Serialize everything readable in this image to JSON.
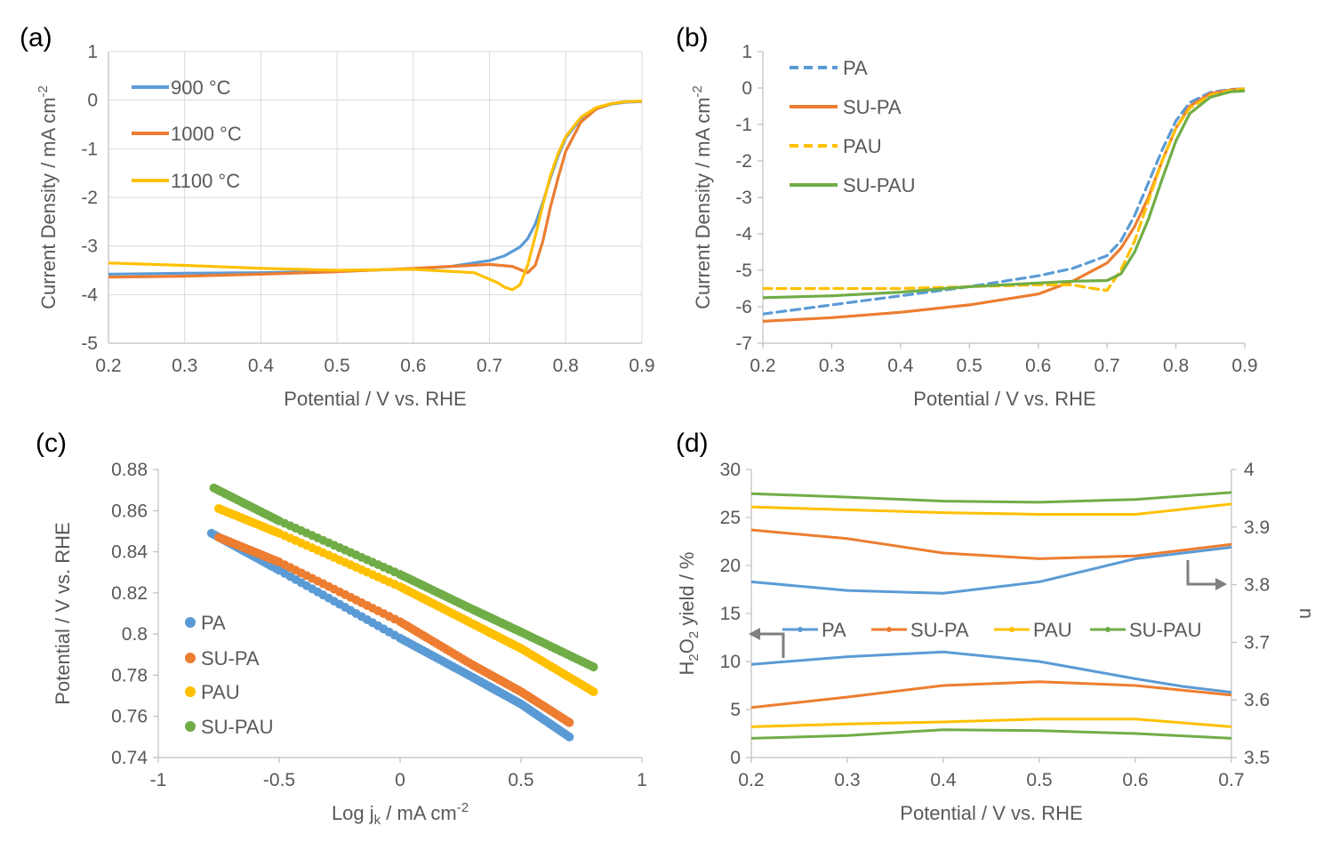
{
  "chart_data": [
    {
      "panel": "(a)",
      "type": "line",
      "xlabel": "Potential / V vs. RHE",
      "ylabel": "Current Density / mA cm",
      "ylabel_sup": "-2",
      "xlim": [
        0.2,
        0.9
      ],
      "ylim": [
        -5,
        1
      ],
      "xticks": [
        "0.2",
        "0.3",
        "0.4",
        "0.5",
        "0.6",
        "0.7",
        "0.8",
        "0.9"
      ],
      "yticks": [
        "1",
        "0",
        "-1",
        "-2",
        "-3",
        "-4",
        "-5"
      ],
      "grid": true,
      "legend_position": "top-left",
      "series": [
        {
          "name": "900 °C",
          "color": "#5B9BD5",
          "dashed": false,
          "x": [
            0.2,
            0.3,
            0.4,
            0.5,
            0.6,
            0.65,
            0.7,
            0.72,
            0.74,
            0.75,
            0.76,
            0.77,
            0.78,
            0.79,
            0.8,
            0.82,
            0.84,
            0.86,
            0.88,
            0.9
          ],
          "y": [
            -3.58,
            -3.56,
            -3.55,
            -3.52,
            -3.47,
            -3.42,
            -3.3,
            -3.2,
            -3.02,
            -2.85,
            -2.55,
            -2.1,
            -1.6,
            -1.15,
            -0.78,
            -0.38,
            -0.18,
            -0.08,
            -0.04,
            -0.03
          ]
        },
        {
          "name": "1000 °C",
          "color": "#ED7D31",
          "dashed": false,
          "x": [
            0.2,
            0.3,
            0.4,
            0.5,
            0.6,
            0.7,
            0.73,
            0.75,
            0.76,
            0.77,
            0.78,
            0.79,
            0.8,
            0.82,
            0.84,
            0.86,
            0.88,
            0.9
          ],
          "y": [
            -3.64,
            -3.62,
            -3.58,
            -3.53,
            -3.46,
            -3.38,
            -3.42,
            -3.55,
            -3.4,
            -2.9,
            -2.2,
            -1.6,
            -1.05,
            -0.45,
            -0.18,
            -0.07,
            -0.03,
            -0.02
          ]
        },
        {
          "name": "1100 °C",
          "color": "#FFC000",
          "dashed": false,
          "x": [
            0.2,
            0.3,
            0.4,
            0.5,
            0.6,
            0.68,
            0.71,
            0.72,
            0.73,
            0.74,
            0.75,
            0.76,
            0.77,
            0.78,
            0.79,
            0.8,
            0.82,
            0.84,
            0.86,
            0.88,
            0.9
          ],
          "y": [
            -3.35,
            -3.4,
            -3.46,
            -3.5,
            -3.48,
            -3.55,
            -3.75,
            -3.85,
            -3.9,
            -3.8,
            -3.4,
            -2.8,
            -2.15,
            -1.55,
            -1.1,
            -0.75,
            -0.35,
            -0.15,
            -0.07,
            -0.03,
            -0.02
          ]
        }
      ]
    },
    {
      "panel": "(b)",
      "type": "line",
      "xlabel": "Potential / V vs. RHE",
      "ylabel": "Current Density / mA cm",
      "ylabel_sup": "-2",
      "xlim": [
        0.2,
        0.9
      ],
      "ylim": [
        -7,
        1
      ],
      "xticks": [
        "0.2",
        "0.3",
        "0.4",
        "0.5",
        "0.6",
        "0.7",
        "0.8",
        "0.9"
      ],
      "yticks": [
        "1",
        "0",
        "-1",
        "-2",
        "-3",
        "-4",
        "-5",
        "-6",
        "-7"
      ],
      "grid": false,
      "legend_position": "top-left",
      "series": [
        {
          "name": "PA",
          "color": "#5B9BD5",
          "dashed": true,
          "x": [
            0.2,
            0.3,
            0.4,
            0.5,
            0.6,
            0.65,
            0.7,
            0.72,
            0.74,
            0.76,
            0.78,
            0.8,
            0.82,
            0.85,
            0.88,
            0.9
          ],
          "y": [
            -6.2,
            -5.95,
            -5.7,
            -5.45,
            -5.15,
            -4.95,
            -4.6,
            -4.2,
            -3.5,
            -2.6,
            -1.7,
            -0.9,
            -0.4,
            -0.12,
            -0.04,
            -0.02
          ]
        },
        {
          "name": "SU-PA",
          "color": "#ED7D31",
          "dashed": false,
          "x": [
            0.2,
            0.3,
            0.4,
            0.5,
            0.6,
            0.65,
            0.7,
            0.72,
            0.74,
            0.76,
            0.78,
            0.8,
            0.82,
            0.85,
            0.88,
            0.9
          ],
          "y": [
            -6.4,
            -6.3,
            -6.15,
            -5.95,
            -5.65,
            -5.3,
            -4.8,
            -4.4,
            -3.8,
            -3.0,
            -2.0,
            -1.1,
            -0.5,
            -0.15,
            -0.05,
            -0.02
          ]
        },
        {
          "name": "PAU",
          "color": "#FFC000",
          "dashed": true,
          "x": [
            0.2,
            0.3,
            0.4,
            0.5,
            0.6,
            0.65,
            0.68,
            0.7,
            0.72,
            0.74,
            0.76,
            0.78,
            0.8,
            0.82,
            0.85,
            0.88,
            0.9
          ],
          "y": [
            -5.5,
            -5.5,
            -5.5,
            -5.45,
            -5.4,
            -5.4,
            -5.5,
            -5.55,
            -5.0,
            -4.2,
            -3.1,
            -2.0,
            -1.1,
            -0.55,
            -0.2,
            -0.06,
            -0.03
          ]
        },
        {
          "name": "SU-PAU",
          "color": "#70AD47",
          "dashed": false,
          "x": [
            0.2,
            0.3,
            0.4,
            0.5,
            0.6,
            0.65,
            0.7,
            0.72,
            0.74,
            0.76,
            0.78,
            0.8,
            0.82,
            0.85,
            0.88,
            0.9
          ],
          "y": [
            -5.75,
            -5.7,
            -5.6,
            -5.45,
            -5.35,
            -5.3,
            -5.28,
            -5.1,
            -4.5,
            -3.6,
            -2.5,
            -1.45,
            -0.7,
            -0.25,
            -0.1,
            -0.08
          ]
        }
      ]
    },
    {
      "panel": "(c)",
      "type": "scatter",
      "xlabel": "Log j",
      "xlabel_sub": "k",
      "xlabel_rest": " / mA cm",
      "xlabel_sup": "-2",
      "ylabel": "Potential / V vs. RHE",
      "xlim": [
        -1,
        1
      ],
      "ylim": [
        0.74,
        0.88
      ],
      "xticks": [
        "-1",
        "-0.5",
        "0",
        "0.5",
        "1"
      ],
      "yticks": [
        "0.88",
        "0.86",
        "0.84",
        "0.82",
        "0.8",
        "0.78",
        "0.76",
        "0.74"
      ],
      "grid": false,
      "legend_position": "bottom-left",
      "series": [
        {
          "name": "PA",
          "color": "#5B9BD5",
          "x": [
            -0.78,
            -0.5,
            0.0,
            0.3,
            0.5,
            0.7
          ],
          "y": [
            0.849,
            0.831,
            0.798,
            0.779,
            0.766,
            0.75
          ]
        },
        {
          "name": "SU-PA",
          "color": "#ED7D31",
          "x": [
            -0.75,
            -0.5,
            0.0,
            0.3,
            0.5,
            0.7
          ],
          "y": [
            0.847,
            0.835,
            0.806,
            0.785,
            0.772,
            0.757
          ]
        },
        {
          "name": "PAU",
          "color": "#FFC000",
          "x": [
            -0.75,
            -0.5,
            0.0,
            0.3,
            0.5,
            0.8
          ],
          "y": [
            0.861,
            0.849,
            0.823,
            0.805,
            0.793,
            0.772
          ]
        },
        {
          "name": "SU-PAU",
          "color": "#70AD47",
          "x": [
            -0.77,
            -0.5,
            0.0,
            0.3,
            0.5,
            0.8
          ],
          "y": [
            0.871,
            0.855,
            0.829,
            0.812,
            0.801,
            0.784
          ]
        }
      ]
    },
    {
      "panel": "(d)",
      "type": "line",
      "xlabel": "Potential / V vs. RHE",
      "ylabel": "H",
      "ylabel_sub1": "2",
      "ylabel_mid": "O",
      "ylabel_sub2": "2",
      "ylabel_rest": " yield / %",
      "y2label": "n",
      "xlim": [
        0.2,
        0.7
      ],
      "ylim": [
        0,
        30
      ],
      "y2lim": [
        3.5,
        4
      ],
      "xticks": [
        "0.2",
        "0.3",
        "0.4",
        "0.5",
        "0.6",
        "0.7"
      ],
      "yticks": [
        "30",
        "25",
        "20",
        "15",
        "10",
        "5",
        "0"
      ],
      "y2ticks": [
        "4",
        "3.9",
        "3.8",
        "3.7",
        "3.6",
        "3.5"
      ],
      "grid": false,
      "legend_position": "center",
      "series": [
        {
          "name": "PA",
          "color": "#5B9BD5",
          "axis": "left",
          "x": [
            0.2,
            0.3,
            0.4,
            0.5,
            0.6,
            0.65,
            0.7
          ],
          "y": [
            9.7,
            10.5,
            11.0,
            10.0,
            8.2,
            7.4,
            6.8
          ]
        },
        {
          "name": "SU-PA",
          "color": "#ED7D31",
          "axis": "left",
          "x": [
            0.2,
            0.3,
            0.4,
            0.5,
            0.6,
            0.7
          ],
          "y": [
            5.2,
            6.3,
            7.5,
            7.9,
            7.5,
            6.5
          ]
        },
        {
          "name": "PAU",
          "color": "#FFC000",
          "axis": "left",
          "x": [
            0.2,
            0.3,
            0.4,
            0.5,
            0.6,
            0.7
          ],
          "y": [
            3.2,
            3.5,
            3.7,
            4.0,
            4.0,
            3.2
          ]
        },
        {
          "name": "SU-PAU",
          "color": "#70AD47",
          "axis": "left",
          "x": [
            0.2,
            0.3,
            0.4,
            0.5,
            0.6,
            0.7
          ],
          "y": [
            2.0,
            2.3,
            2.9,
            2.8,
            2.5,
            2.0
          ]
        },
        {
          "name": "PA",
          "color": "#5B9BD5",
          "axis": "right",
          "x": [
            0.2,
            0.3,
            0.4,
            0.5,
            0.6,
            0.7
          ],
          "y": [
            3.805,
            3.79,
            3.785,
            3.805,
            3.845,
            3.865
          ]
        },
        {
          "name": "SU-PA",
          "color": "#ED7D31",
          "axis": "right",
          "x": [
            0.2,
            0.3,
            0.4,
            0.5,
            0.6,
            0.7
          ],
          "y": [
            3.895,
            3.88,
            3.855,
            3.845,
            3.85,
            3.87
          ]
        },
        {
          "name": "PAU",
          "color": "#FFC000",
          "axis": "right",
          "x": [
            0.2,
            0.3,
            0.4,
            0.5,
            0.6,
            0.7
          ],
          "y": [
            3.935,
            3.93,
            3.925,
            3.922,
            3.922,
            3.94
          ]
        },
        {
          "name": "SU-PAU",
          "color": "#70AD47",
          "axis": "right",
          "x": [
            0.2,
            0.3,
            0.4,
            0.5,
            0.6,
            0.7
          ],
          "y": [
            3.958,
            3.952,
            3.945,
            3.943,
            3.948,
            3.96
          ]
        }
      ]
    }
  ]
}
